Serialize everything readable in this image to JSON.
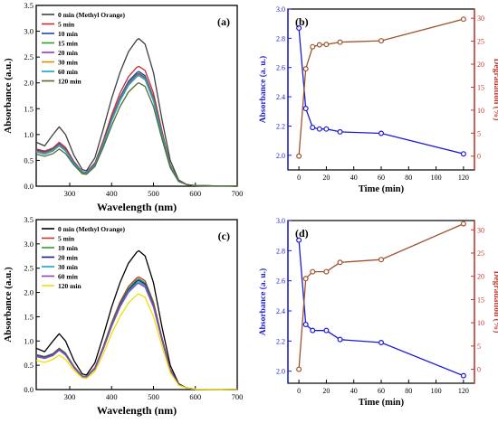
{
  "chart_data": [
    {
      "id": "a",
      "type": "line",
      "panel_label": "(a)",
      "xlabel": "Wavelength (nm)",
      "ylabel": "Absorbance (a.u.)",
      "xlim": [
        220,
        700
      ],
      "ylim": [
        0,
        3.5
      ],
      "xticks": [
        "300",
        "400",
        "500",
        "600",
        "700"
      ],
      "yticks": [
        "0.0",
        "0.5",
        "1.0",
        "1.5",
        "2.0",
        "2.5",
        "3.0",
        "3.5"
      ],
      "legend_position": "top-left",
      "colors": {
        "axis": "#000000"
      },
      "x": [
        220,
        240,
        260,
        275,
        290,
        310,
        330,
        340,
        360,
        380,
        400,
        420,
        440,
        460,
        465,
        480,
        500,
        520,
        540,
        560,
        580,
        600,
        700
      ],
      "series": [
        {
          "name": "0 min (Methyl Orange)",
          "color": "#404040",
          "values": [
            0.85,
            0.78,
            1.0,
            1.15,
            1.0,
            0.6,
            0.32,
            0.3,
            0.55,
            1.1,
            1.7,
            2.2,
            2.6,
            2.83,
            2.86,
            2.75,
            2.2,
            1.3,
            0.5,
            0.12,
            0.03,
            0.01,
            0.0
          ]
        },
        {
          "name": "5 min",
          "color": "#d62728",
          "values": [
            0.72,
            0.68,
            0.74,
            0.85,
            0.75,
            0.48,
            0.28,
            0.27,
            0.45,
            0.88,
            1.38,
            1.8,
            2.12,
            2.3,
            2.32,
            2.24,
            1.8,
            1.08,
            0.42,
            0.1,
            0.03,
            0.01,
            0.0
          ]
        },
        {
          "name": "10 min",
          "color": "#1f3fbf",
          "values": [
            0.7,
            0.66,
            0.72,
            0.82,
            0.72,
            0.46,
            0.27,
            0.26,
            0.43,
            0.84,
            1.32,
            1.72,
            2.03,
            2.2,
            2.22,
            2.14,
            1.72,
            1.03,
            0.4,
            0.1,
            0.03,
            0.01,
            0.0
          ]
        },
        {
          "name": "15 min",
          "color": "#2ca02c",
          "values": [
            0.69,
            0.65,
            0.71,
            0.81,
            0.71,
            0.45,
            0.27,
            0.26,
            0.42,
            0.83,
            1.3,
            1.7,
            2.0,
            2.17,
            2.19,
            2.11,
            1.7,
            1.02,
            0.4,
            0.1,
            0.03,
            0.01,
            0.0
          ]
        },
        {
          "name": "20 min",
          "color": "#9b30d0",
          "values": [
            0.68,
            0.64,
            0.7,
            0.8,
            0.7,
            0.45,
            0.26,
            0.26,
            0.42,
            0.82,
            1.29,
            1.68,
            1.98,
            2.15,
            2.17,
            2.09,
            1.68,
            1.01,
            0.39,
            0.1,
            0.03,
            0.01,
            0.0
          ]
        },
        {
          "name": "30 min",
          "color": "#e08a00",
          "values": [
            0.67,
            0.63,
            0.69,
            0.79,
            0.69,
            0.44,
            0.26,
            0.25,
            0.41,
            0.81,
            1.27,
            1.66,
            1.96,
            2.13,
            2.15,
            2.07,
            1.66,
            1.0,
            0.39,
            0.1,
            0.03,
            0.01,
            0.0
          ]
        },
        {
          "name": "60 min",
          "color": "#17a5c8",
          "values": [
            0.66,
            0.62,
            0.68,
            0.78,
            0.68,
            0.44,
            0.26,
            0.25,
            0.41,
            0.8,
            1.26,
            1.65,
            1.95,
            2.12,
            2.14,
            2.06,
            1.65,
            0.99,
            0.39,
            0.1,
            0.03,
            0.01,
            0.0
          ]
        },
        {
          "name": "120 min",
          "color": "#556b2f",
          "values": [
            0.62,
            0.58,
            0.63,
            0.72,
            0.63,
            0.41,
            0.24,
            0.23,
            0.38,
            0.75,
            1.17,
            1.54,
            1.82,
            1.98,
            2.0,
            1.93,
            1.54,
            0.92,
            0.36,
            0.09,
            0.03,
            0.01,
            0.0
          ]
        }
      ]
    },
    {
      "id": "b",
      "type": "line",
      "panel_label": "(b)",
      "xlabel": "Time (min)",
      "ylabel": "Absorbance (a. u.)",
      "y2label": "Degradation (%)",
      "xlim": [
        -8,
        128
      ],
      "ylim": [
        1.9,
        3.0
      ],
      "y2lim": [
        -3,
        32
      ],
      "xticks": [
        "0",
        "20",
        "40",
        "60",
        "80",
        "100",
        "120"
      ],
      "yticks": [
        "2.0",
        "2.2",
        "2.4",
        "2.6",
        "2.8",
        "3.0"
      ],
      "y2ticks": [
        "0",
        "5",
        "10",
        "15",
        "20",
        "25",
        "30"
      ],
      "colors": {
        "left_axis": "#1a1ad9",
        "right_axis": "#c0392b"
      },
      "x": [
        0,
        5,
        10,
        15,
        20,
        30,
        60,
        120
      ],
      "series": [
        {
          "axis": "left",
          "color": "#1a1ad9",
          "marker": "circle",
          "values": [
            2.87,
            2.32,
            2.19,
            2.18,
            2.18,
            2.16,
            2.15,
            2.01
          ]
        },
        {
          "axis": "right",
          "color": "#a0522d",
          "marker": "circle",
          "values": [
            0,
            19,
            23.8,
            24.2,
            24.3,
            24.8,
            25.1,
            29.8
          ]
        }
      ]
    },
    {
      "id": "c",
      "type": "line",
      "panel_label": "(c)",
      "xlabel": "Wavelength (nm)",
      "ylabel": "Absorbance (a.u.)",
      "xlim": [
        220,
        700
      ],
      "ylim": [
        0,
        3.5
      ],
      "xticks": [
        "300",
        "400",
        "500",
        "600",
        "700"
      ],
      "yticks": [
        "0.0",
        "0.5",
        "1.0",
        "1.5",
        "2.0",
        "2.5",
        "3.0",
        "3.5"
      ],
      "legend_position": "top-left",
      "colors": {
        "axis": "#000000"
      },
      "x": [
        220,
        240,
        260,
        275,
        290,
        310,
        330,
        340,
        360,
        380,
        400,
        420,
        440,
        460,
        465,
        480,
        500,
        520,
        540,
        560,
        580,
        600,
        700
      ],
      "series": [
        {
          "name": "0 min (Methyl Orange)",
          "color": "#000000",
          "values": [
            0.85,
            0.78,
            1.0,
            1.15,
            1.0,
            0.6,
            0.32,
            0.3,
            0.55,
            1.1,
            1.7,
            2.2,
            2.6,
            2.83,
            2.86,
            2.75,
            2.2,
            1.3,
            0.5,
            0.12,
            0.03,
            0.01,
            0.0
          ]
        },
        {
          "name": "5 min",
          "color": "#c0392b",
          "values": [
            0.72,
            0.68,
            0.74,
            0.85,
            0.75,
            0.48,
            0.28,
            0.27,
            0.45,
            0.88,
            1.38,
            1.8,
            2.12,
            2.3,
            2.32,
            2.24,
            1.8,
            1.08,
            0.42,
            0.1,
            0.03,
            0.01,
            0.0
          ]
        },
        {
          "name": "10 min",
          "color": "#2ca02c",
          "values": [
            0.71,
            0.67,
            0.73,
            0.84,
            0.74,
            0.47,
            0.28,
            0.27,
            0.44,
            0.86,
            1.35,
            1.76,
            2.08,
            2.26,
            2.28,
            2.2,
            1.76,
            1.06,
            0.41,
            0.1,
            0.03,
            0.01,
            0.0
          ]
        },
        {
          "name": "20 min",
          "color": "#1a1a8c",
          "values": [
            0.7,
            0.66,
            0.72,
            0.83,
            0.73,
            0.46,
            0.27,
            0.26,
            0.43,
            0.85,
            1.33,
            1.74,
            2.05,
            2.23,
            2.25,
            2.17,
            1.74,
            1.04,
            0.41,
            0.1,
            0.03,
            0.01,
            0.0
          ]
        },
        {
          "name": "30 min",
          "color": "#17a5c8",
          "values": [
            0.69,
            0.65,
            0.71,
            0.82,
            0.72,
            0.46,
            0.27,
            0.26,
            0.43,
            0.84,
            1.32,
            1.72,
            2.03,
            2.2,
            2.22,
            2.14,
            1.72,
            1.03,
            0.4,
            0.1,
            0.03,
            0.01,
            0.0
          ]
        },
        {
          "name": "60 min",
          "color": "#8e44ad",
          "values": [
            0.68,
            0.64,
            0.7,
            0.81,
            0.71,
            0.45,
            0.26,
            0.26,
            0.42,
            0.83,
            1.3,
            1.7,
            2.0,
            2.17,
            2.19,
            2.11,
            1.7,
            1.02,
            0.4,
            0.1,
            0.03,
            0.01,
            0.0
          ]
        },
        {
          "name": "120 min",
          "color": "#f0e000",
          "values": [
            0.6,
            0.56,
            0.62,
            0.71,
            0.62,
            0.4,
            0.24,
            0.23,
            0.37,
            0.73,
            1.15,
            1.5,
            1.78,
            1.95,
            1.97,
            1.9,
            1.5,
            0.9,
            0.35,
            0.09,
            0.03,
            0.01,
            0.0
          ]
        }
      ]
    },
    {
      "id": "d",
      "type": "line",
      "panel_label": "(d)",
      "xlabel": "Time (min)",
      "ylabel": "Absorbance (a. u.)",
      "y2label": "Degradation (%)",
      "xlim": [
        -8,
        128
      ],
      "ylim": [
        1.92,
        3.0
      ],
      "y2lim": [
        -3,
        32
      ],
      "xticks": [
        "0",
        "20",
        "40",
        "60",
        "80",
        "100",
        "120"
      ],
      "yticks": [
        "2.0",
        "2.2",
        "2.4",
        "2.6",
        "2.8",
        "3.0"
      ],
      "y2ticks": [
        "0",
        "5",
        "10",
        "15",
        "20",
        "25",
        "30"
      ],
      "colors": {
        "left_axis": "#1a1ad9",
        "right_axis": "#c0392b"
      },
      "x": [
        0,
        5,
        10,
        20,
        30,
        60,
        120
      ],
      "series": [
        {
          "axis": "left",
          "color": "#1a1ad9",
          "marker": "circle",
          "values": [
            2.87,
            2.31,
            2.27,
            2.27,
            2.21,
            2.19,
            1.97
          ]
        },
        {
          "axis": "right",
          "color": "#a0522d",
          "marker": "circle",
          "values": [
            0,
            19.5,
            21,
            21,
            23,
            23.6,
            31.3
          ]
        }
      ]
    }
  ]
}
